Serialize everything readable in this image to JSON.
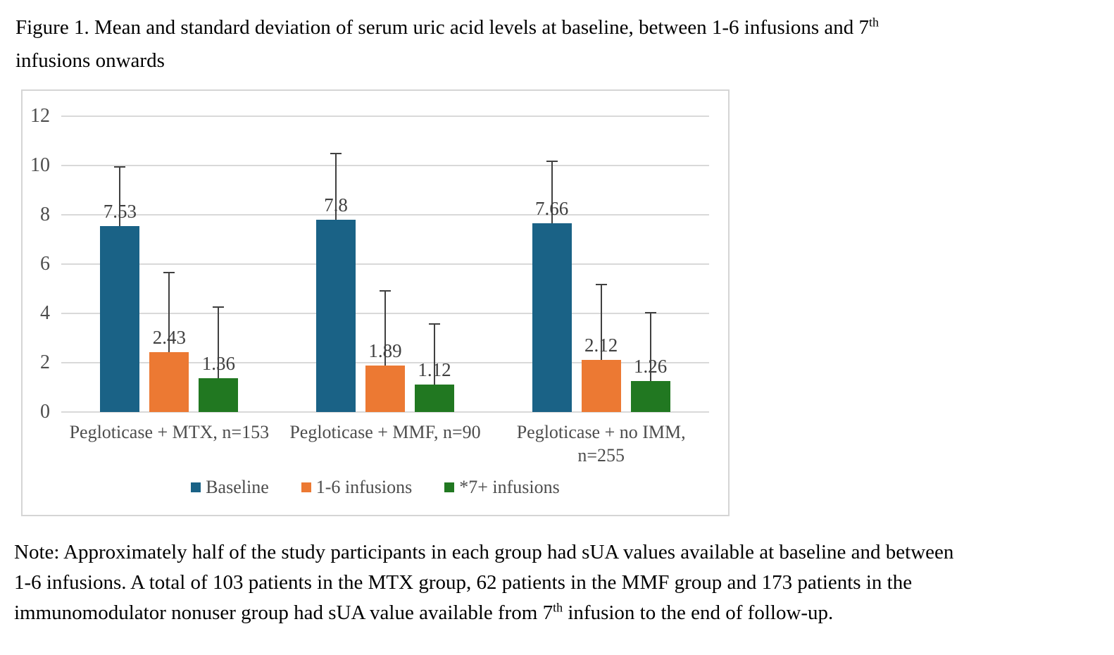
{
  "figure": {
    "title": {
      "line1_text": "Figure 1. Mean and standard deviation of serum uric acid levels at baseline, between 1-6 infusions and 7",
      "line1_sup": "th",
      "line2_text": "infusions onwards"
    },
    "note": {
      "line1": "Note: Approximately half of the study participants in each group had sUA values available at baseline and between",
      "line2": "1-6 infusions. A total of 103 patients in the MTX group, 62 patients in the MMF group and 173 patients in the",
      "line3_prefix": "immunomodulator nonuser group had sUA value available from 7",
      "line3_sup": "th",
      "line3_suffix": " infusion to the end of follow-up."
    }
  },
  "colors": {
    "baseline_bar": "#1A6286",
    "infusions_1_6_bar": "#EC7933",
    "infusions_7plus_bar": "#217821",
    "gridline": "#D9D9D9",
    "error_bar": "#404040",
    "data_label_text": "#404040",
    "axis_text": "#4D4D4D",
    "chart_border": "#D5D5D5"
  },
  "chart_data": {
    "type": "bar",
    "title": "Figure 1. Mean and standard deviation of serum uric acid levels at baseline, between 1-6 infusions and 7th infusions onwards",
    "xlabel": "",
    "ylabel": "",
    "ylim": [
      0,
      12
    ],
    "yticks": [
      0,
      2,
      4,
      6,
      8,
      10,
      12
    ],
    "grid": true,
    "legend_position": "bottom",
    "error_bars": "upper only, with end caps (SD estimated from pixels)",
    "categories": [
      "Pegloticase + MTX, n=153",
      "Pegloticase + MMF, n=90",
      "Pegloticase + no IMM, n=255"
    ],
    "categories_display": [
      "Pegloticase + MTX, n=153",
      "Pegloticase + MMF, n=90",
      "Pegloticase + no IMM,\nn=255"
    ],
    "series": [
      {
        "name": "Baseline",
        "color": "#1A6286",
        "values": [
          7.53,
          7.8,
          7.66
        ],
        "value_labels": [
          "7.53",
          "7.8",
          "7.66"
        ],
        "sd_upper": [
          2.42,
          2.7,
          2.51
        ]
      },
      {
        "name": "1-6 infusions",
        "color": "#EC7933",
        "values": [
          2.43,
          1.89,
          2.12
        ],
        "value_labels": [
          "2.43",
          "1.89",
          "2.12"
        ],
        "sd_upper": [
          3.24,
          3.03,
          3.06
        ]
      },
      {
        "name": "*7+ infusions",
        "color": "#217821",
        "values": [
          1.36,
          1.12,
          1.26
        ],
        "value_labels": [
          "1.36",
          "1.12",
          "1.26"
        ],
        "sd_upper": [
          2.9,
          2.46,
          2.78
        ]
      }
    ]
  }
}
